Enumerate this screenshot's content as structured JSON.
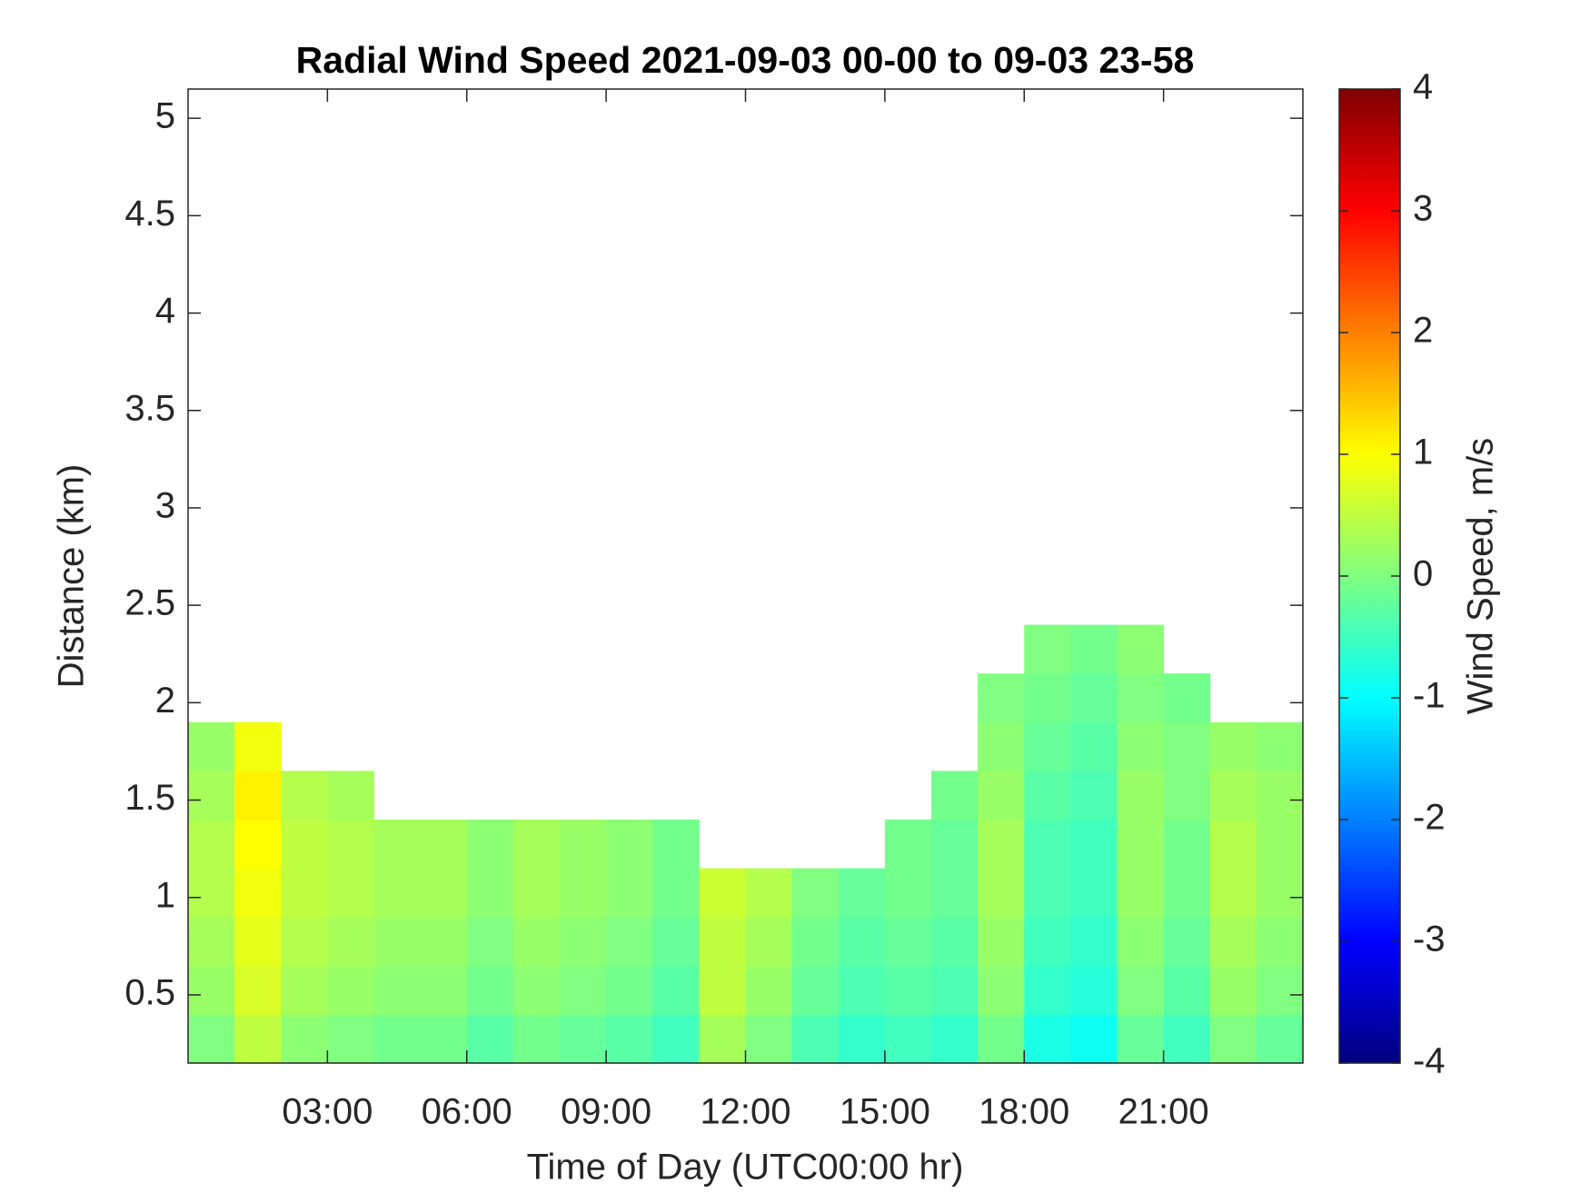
{
  "chart_data": {
    "type": "heatmap",
    "title": "Radial Wind Speed 2021-09-03 00-00 to 09-03 23-58",
    "xlabel": "Time of Day (UTC00:00 hr)",
    "ylabel": "Distance (km)",
    "colorbar_label": "Wind Speed, m/s",
    "colormap": "jet",
    "x": [
      0.5,
      1.5,
      2.5,
      3.5,
      4.5,
      5.5,
      6.5,
      7.5,
      8.5,
      9.5,
      10.5,
      11.5,
      12.5,
      13.5,
      14.5,
      15.5,
      16.5,
      17.5,
      18.5,
      19.5,
      20.5,
      21.5,
      22.5,
      23.5
    ],
    "y": [
      0.275,
      0.525,
      0.775,
      1.025,
      1.275,
      1.525,
      1.775,
      2.025,
      2.275
    ],
    "z": [
      [
        0.0,
        0.5,
        0.1,
        0.0,
        -0.1,
        -0.1,
        -0.3,
        -0.1,
        -0.2,
        -0.3,
        -0.5,
        0.3,
        0.0,
        -0.4,
        -0.6,
        -0.5,
        -0.6,
        -0.1,
        -0.8,
        -0.9,
        -0.2,
        -0.5,
        0.0,
        -0.2
      ],
      [
        0.2,
        0.7,
        0.3,
        0.2,
        0.1,
        0.1,
        -0.1,
        0.1,
        0.0,
        -0.1,
        -0.3,
        0.5,
        0.2,
        -0.2,
        -0.4,
        -0.3,
        -0.4,
        0.1,
        -0.6,
        -0.7,
        0.0,
        -0.3,
        0.2,
        0.0
      ],
      [
        0.3,
        0.8,
        0.4,
        0.3,
        0.2,
        0.2,
        0.0,
        0.2,
        0.1,
        0.0,
        -0.2,
        0.5,
        0.3,
        -0.1,
        -0.3,
        -0.2,
        -0.3,
        0.2,
        -0.5,
        -0.6,
        0.1,
        -0.2,
        0.3,
        0.1
      ],
      [
        0.4,
        0.9,
        0.5,
        0.4,
        0.3,
        0.3,
        0.1,
        0.3,
        0.2,
        0.1,
        -0.1,
        0.6,
        0.4,
        0.0,
        -0.2,
        -0.1,
        -0.2,
        0.3,
        -0.4,
        -0.5,
        0.2,
        -0.1,
        0.4,
        0.2
      ],
      [
        0.4,
        1.0,
        0.5,
        0.4,
        0.3,
        0.3,
        0.1,
        0.3,
        0.2,
        0.1,
        -0.1,
        null,
        null,
        null,
        null,
        -0.1,
        -0.2,
        0.3,
        -0.4,
        -0.5,
        0.2,
        -0.1,
        0.4,
        0.2
      ],
      [
        0.3,
        1.1,
        0.4,
        0.3,
        null,
        null,
        null,
        null,
        null,
        null,
        null,
        null,
        null,
        null,
        null,
        null,
        -0.1,
        0.2,
        -0.3,
        -0.4,
        0.2,
        0.0,
        0.3,
        0.2
      ],
      [
        0.2,
        0.9,
        null,
        null,
        null,
        null,
        null,
        null,
        null,
        null,
        null,
        null,
        null,
        null,
        null,
        null,
        null,
        0.1,
        -0.2,
        -0.3,
        0.1,
        0.0,
        0.2,
        0.1
      ],
      [
        null,
        null,
        null,
        null,
        null,
        null,
        null,
        null,
        null,
        null,
        null,
        null,
        null,
        null,
        null,
        null,
        null,
        0.0,
        -0.1,
        -0.2,
        0.0,
        -0.1,
        null,
        null
      ],
      [
        null,
        null,
        null,
        null,
        null,
        null,
        null,
        null,
        null,
        null,
        null,
        null,
        null,
        null,
        null,
        null,
        null,
        null,
        0.0,
        -0.1,
        0.1,
        null,
        null,
        null
      ]
    ],
    "xlim": [
      0,
      24
    ],
    "xticks": [
      {
        "value": 3,
        "label": "03:00"
      },
      {
        "value": 6,
        "label": "06:00"
      },
      {
        "value": 9,
        "label": "09:00"
      },
      {
        "value": 12,
        "label": "12:00"
      },
      {
        "value": 15,
        "label": "15:00"
      },
      {
        "value": 18,
        "label": "18:00"
      },
      {
        "value": 21,
        "label": "21:00"
      }
    ],
    "ylim": [
      0.15,
      5.15
    ],
    "yticks": [
      0.5,
      1,
      1.5,
      2,
      2.5,
      3,
      3.5,
      4,
      4.5,
      5
    ],
    "clim": [
      -4,
      4
    ],
    "cticks": [
      -4,
      -3,
      -2,
      -1,
      0,
      1,
      2,
      3,
      4
    ]
  }
}
